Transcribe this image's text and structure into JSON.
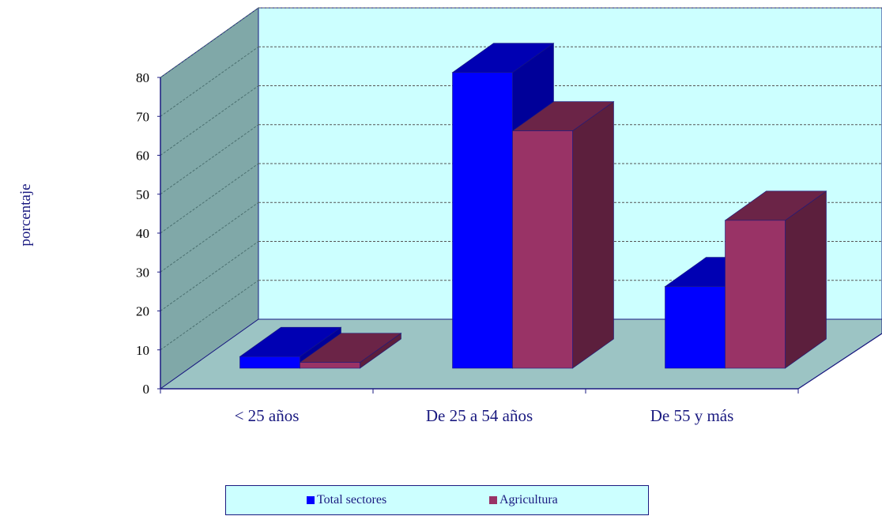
{
  "chart_data": {
    "type": "bar",
    "title": "",
    "xlabel": "",
    "ylabel": "porcentaje",
    "ylim": [
      0,
      80
    ],
    "yticks": [
      "0",
      "10",
      "20",
      "30",
      "40",
      "50",
      "60",
      "70",
      "80"
    ],
    "categories": [
      "< 25 años",
      "De 25 a 54 años",
      "De 55 y más"
    ],
    "series": [
      {
        "name": "Total sectores",
        "values": [
          3,
          76,
          21
        ],
        "color": "#0000ff"
      },
      {
        "name": "Agricultura",
        "values": [
          1.5,
          61,
          38
        ],
        "color": "#993366"
      }
    ],
    "grid": true,
    "legend_position": "bottom",
    "colors": {
      "back_wall": "#ccffff",
      "side_wall": "#80a8a8",
      "floor": "#9cc4c4",
      "axis": "#1a1a80"
    }
  }
}
